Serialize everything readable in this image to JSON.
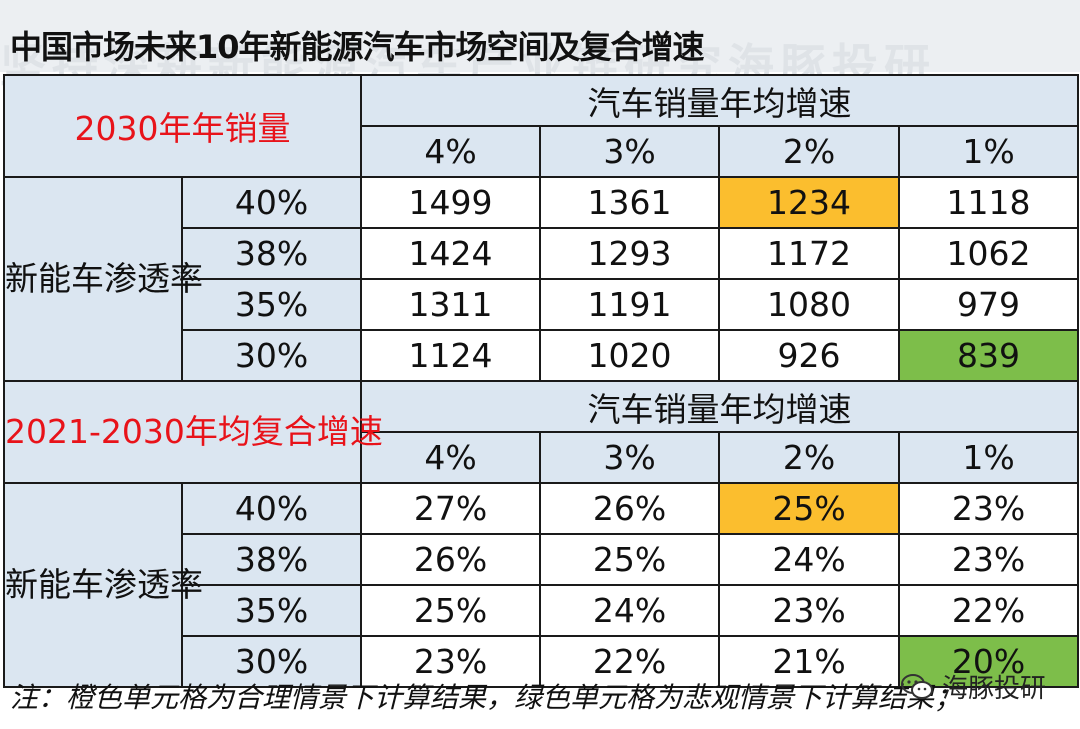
{
  "title": "中国市场未来10年新能源汽车市场空间及复合增速",
  "watermark_text": "坚持深耕新能源汽车产业链研究海豚投研",
  "table1": {
    "corner_label": "2030年年销量",
    "group_header": "汽车销量年均增速",
    "growth_rates": [
      "4%",
      "3%",
      "2%",
      "1%"
    ],
    "row_header": "新能车渗透率",
    "rows": [
      {
        "penetration": "40%",
        "values": [
          "1499",
          "1361",
          "1234",
          "1118"
        ]
      },
      {
        "penetration": "38%",
        "values": [
          "1424",
          "1293",
          "1172",
          "1062"
        ]
      },
      {
        "penetration": "35%",
        "values": [
          "1311",
          "1191",
          "1080",
          "979"
        ]
      },
      {
        "penetration": "30%",
        "values": [
          "1124",
          "1020",
          "926",
          "839"
        ]
      }
    ]
  },
  "table2": {
    "corner_label": "2021-2030年均复合增速",
    "group_header": "汽车销量年均增速",
    "growth_rates": [
      "4%",
      "3%",
      "2%",
      "1%"
    ],
    "row_header": "新能车渗透率",
    "rows": [
      {
        "penetration": "40%",
        "values": [
          "27%",
          "26%",
          "25%",
          "23%"
        ]
      },
      {
        "penetration": "38%",
        "values": [
          "26%",
          "25%",
          "24%",
          "23%"
        ]
      },
      {
        "penetration": "35%",
        "values": [
          "25%",
          "24%",
          "23%",
          "22%"
        ]
      },
      {
        "penetration": "30%",
        "values": [
          "23%",
          "22%",
          "21%",
          "20%"
        ]
      }
    ]
  },
  "highlight_colors": {
    "reasonable_scenario": "#fbbe2e",
    "pessimistic_scenario": "#7dbe4a",
    "header_bg": "#dbe6f1",
    "red_text": "#e8131a"
  },
  "note": "注：橙色单元格为合理情景下计算结果，绿色单元格为悲观情景下计算结果；",
  "wechat_label": "海豚投研",
  "wechat_icon": "wechat-icon"
}
